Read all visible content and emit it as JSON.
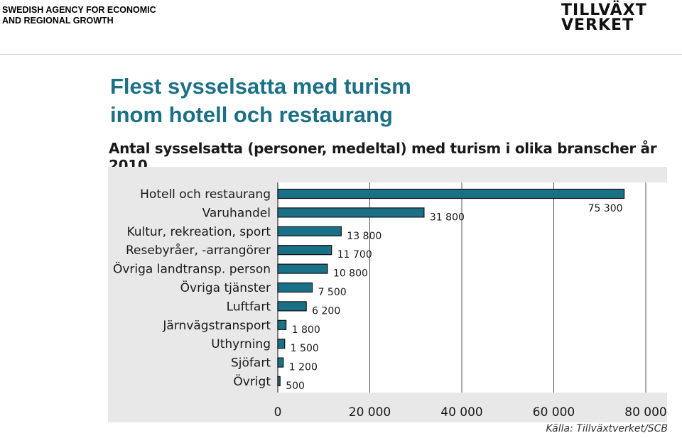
{
  "header": {
    "org_line1": "SWEDISH AGENCY FOR ECONOMIC",
    "org_line2": "AND REGIONAL GROWTH",
    "logo_line1": "TILLVÄXT",
    "logo_line2": "VERKET"
  },
  "slide": {
    "title_line1": "Flest sysselsatta med turism",
    "title_line2": "inom hotell och restaurang",
    "source": "Källa: Tillväxtverket/SCB"
  },
  "colors": {
    "bar": "#1a7187",
    "chart_background": "#e8e8e8",
    "title": "#1a7187"
  },
  "chart_data": {
    "type": "bar",
    "orientation": "horizontal",
    "title": "Antal sysselsatta (personer, medeltal) med turism i olika branscher år 2010",
    "categories": [
      "Hotell och restaurang",
      "Varuhandel",
      "Kultur, rekreation, sport",
      "Resebyråer, -arrangörer",
      "Övriga landtransp. person",
      "Övriga tjänster",
      "Luftfart",
      "Järnvägstransport",
      "Uthyrning",
      "Sjöfart",
      "Övrigt"
    ],
    "values": [
      75300,
      31800,
      13800,
      11700,
      10800,
      7500,
      6200,
      1800,
      1500,
      1200,
      500
    ],
    "value_labels": [
      "75 300",
      "31 800",
      "13 800",
      "11 700",
      "10 800",
      "7 500",
      "6 200",
      "1 800",
      "1 500",
      "1 200",
      "500"
    ],
    "xlim": [
      0,
      80000
    ],
    "x_ticks": [
      0,
      20000,
      40000,
      60000,
      80000
    ],
    "x_tick_labels": [
      "0",
      "20 000",
      "40 000",
      "60 000",
      "80 000"
    ],
    "grid": "vertical"
  }
}
